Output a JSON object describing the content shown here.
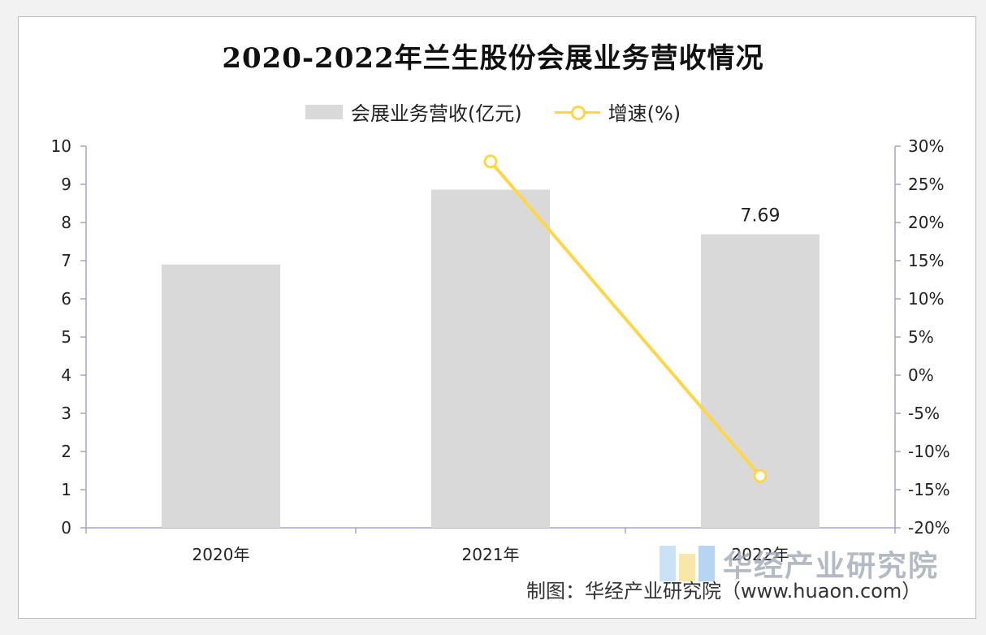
{
  "title": "2020-2022年兰生股份会展业务营收情况",
  "legend": {
    "bar_label": "会展业务营收(亿元)",
    "line_label": "增速(%)"
  },
  "colors": {
    "bar": "#d9d9d9",
    "line": "#ffd54a",
    "axis": "#a9a3c8"
  },
  "chart_data": {
    "type": "bar",
    "categories": [
      "2020年",
      "2021年",
      "2022年"
    ],
    "series": [
      {
        "name": "会展业务营收(亿元)",
        "type": "bar",
        "axis": "left",
        "values": [
          6.9,
          8.86,
          7.69
        ]
      },
      {
        "name": "增速(%)",
        "type": "line",
        "axis": "right",
        "values": [
          null,
          28.0,
          -13.2
        ]
      }
    ],
    "data_labels": [
      {
        "category": "2022年",
        "text": "7.69"
      }
    ],
    "y_left": {
      "range": [
        0,
        10
      ],
      "ticks": [
        "0",
        "1",
        "2",
        "3",
        "4",
        "5",
        "6",
        "7",
        "8",
        "9",
        "10"
      ]
    },
    "y_right": {
      "range": [
        -20,
        30
      ],
      "ticks": [
        "-20%",
        "-15%",
        "-10%",
        "-5%",
        "0%",
        "5%",
        "10%",
        "15%",
        "20%",
        "25%",
        "30%"
      ]
    },
    "grid": false,
    "legend_position": "top"
  },
  "watermark": {
    "text": "华经产业研究院"
  },
  "credit": "制图：华经产业研究院（www.huaon.com）"
}
